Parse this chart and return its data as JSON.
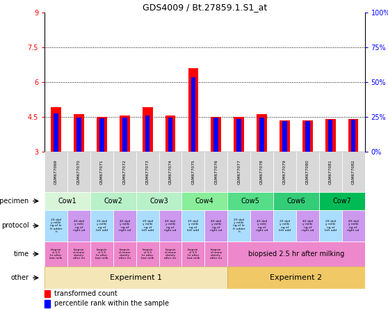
{
  "title": "GDS4009 / Bt.27859.1.S1_at",
  "samples": [
    "GSM677069",
    "GSM677070",
    "GSM677071",
    "GSM677072",
    "GSM677073",
    "GSM677074",
    "GSM677075",
    "GSM677076",
    "GSM677077",
    "GSM677078",
    "GSM677079",
    "GSM677080",
    "GSM677081",
    "GSM677082"
  ],
  "red_values": [
    4.9,
    4.6,
    4.5,
    4.55,
    4.9,
    4.55,
    6.6,
    4.5,
    4.5,
    4.6,
    4.35,
    4.35,
    4.4,
    4.4
  ],
  "blue_values": [
    4.65,
    4.45,
    4.42,
    4.45,
    4.55,
    4.47,
    6.2,
    4.45,
    4.4,
    4.45,
    4.32,
    4.32,
    4.38,
    4.38
  ],
  "y_min": 3,
  "y_max": 9,
  "y_ticks": [
    3,
    4.5,
    6,
    7.5,
    9
  ],
  "right_tick_labels": [
    "0%",
    "25%",
    "50%",
    "75%",
    "100%"
  ],
  "right_tick_positions": [
    3,
    4.5,
    6,
    7.5,
    9
  ],
  "specimen_labels": [
    "Cow1",
    "Cow2",
    "Cow3",
    "Cow4",
    "Cow5",
    "Cow6",
    "Cow7"
  ],
  "specimen_spans": [
    [
      0,
      2
    ],
    [
      2,
      4
    ],
    [
      4,
      6
    ],
    [
      6,
      8
    ],
    [
      8,
      10
    ],
    [
      10,
      12
    ],
    [
      12,
      14
    ]
  ],
  "specimen_colors": [
    "#d8f5d8",
    "#b8f0c8",
    "#b8f0c8",
    "#88ee99",
    "#55dd88",
    "#33cc77",
    "#00bb55"
  ],
  "bar_bottom": 3,
  "dotted_lines": [
    4.5,
    6,
    7.5
  ],
  "exp1_color": "#f5e6b8",
  "exp2_color": "#f0c866",
  "time_color": "#ee88cc",
  "protocol_color_left": "#aaddff",
  "protocol_color_right": "#cc88ee",
  "gsm_bg_color": "#d8d8d8",
  "legend_red": "transformed count",
  "legend_blue": "percentile rank within the sample",
  "other_left": "Experiment 1",
  "other_right": "Experiment 2",
  "time_right_text": "biopsied 2.5 hr after milking"
}
